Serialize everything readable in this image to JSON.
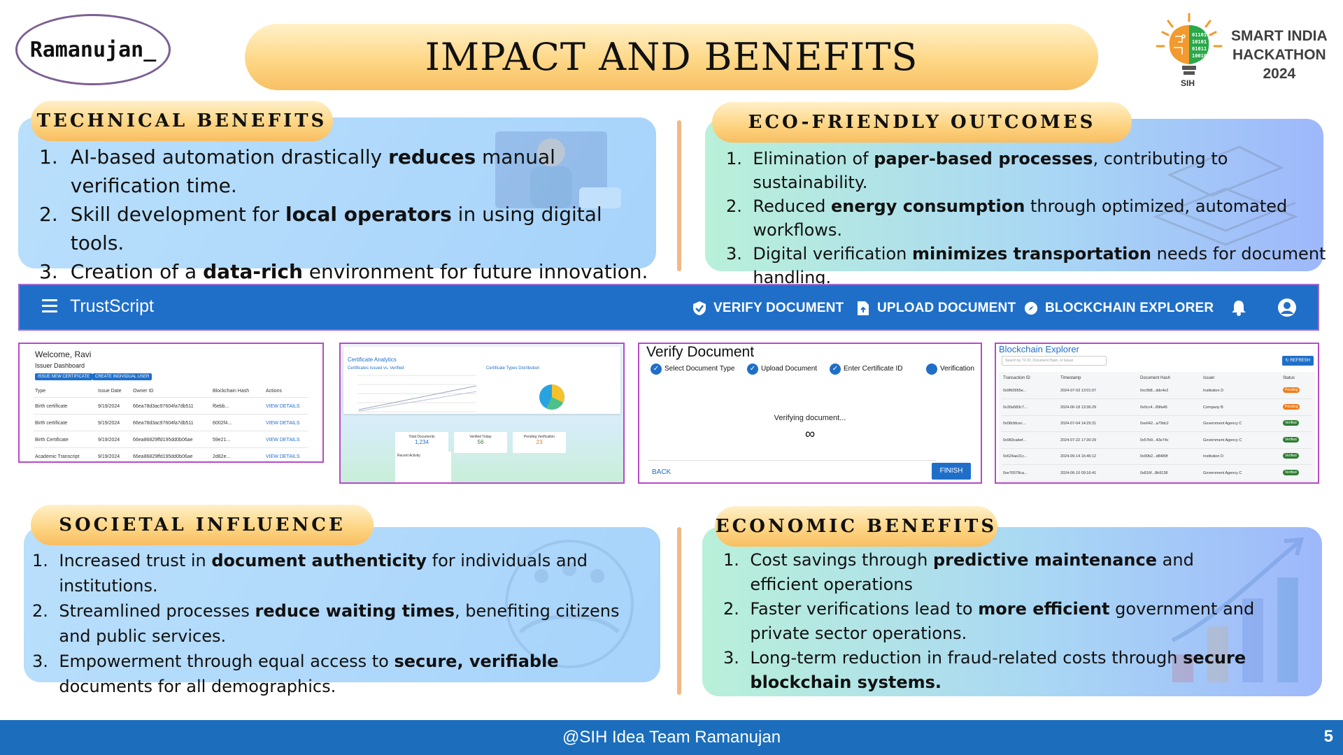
{
  "team_name": "Ramanujan_",
  "slide_title": "IMPACT AND BENEFITS",
  "logo": {
    "line1": "SMART INDIA",
    "line2": "HACKATHON",
    "line3": "2024",
    "badge": "SIH"
  },
  "technical": {
    "heading": "TECHNICAL BENEFITS",
    "items": [
      {
        "pre": "AI-based automation drastically ",
        "bold": "reduces",
        "post": " manual verification time."
      },
      {
        "pre": "Skill development for ",
        "bold": "local operators",
        "post": " in using digital tools."
      },
      {
        "pre": "Creation of a ",
        "bold": "data-rich",
        "post": " environment for future innovation."
      }
    ]
  },
  "eco": {
    "heading": "ECO-FRIENDLY OUTCOMES",
    "items": [
      {
        "pre": "Elimination of ",
        "bold": "paper-based processes",
        "post": ", contributing to sustainability."
      },
      {
        "pre": "Reduced ",
        "bold": "energy consumption",
        "post": " through optimized, automated workflows."
      },
      {
        "pre": "Digital verification ",
        "bold": "minimizes transportation",
        "post": " needs for document handling."
      }
    ]
  },
  "societal": {
    "heading": "SOCIETAL INFLUENCE",
    "items": [
      {
        "pre": "Increased trust in ",
        "bold": "document authenticity",
        "post": " for individuals and institutions."
      },
      {
        "pre": "Streamlined processes ",
        "bold": "reduce waiting times",
        "post": ", benefiting citizens and public services."
      },
      {
        "pre": "Empowerment through equal access to ",
        "bold": "secure, verifiable",
        "post": " documents for all demographics."
      }
    ]
  },
  "economic": {
    "heading": "ECONOMIC BENEFITS",
    "items": [
      {
        "pre": "Cost savings through ",
        "bold": "predictive maintenance",
        "post": " and efficient operations"
      },
      {
        "pre": "Faster verifications lead to ",
        "bold": "more efficient",
        "post": " government and private sector operations."
      },
      {
        "pre": "Long-term reduction in fraud-related costs through ",
        "bold": "secure blockchain systems.",
        "post": ""
      }
    ]
  },
  "trustscript": {
    "brand": "TrustScript",
    "nav": [
      "VERIFY DOCUMENT",
      "UPLOAD DOCUMENT",
      "BLOCKCHAIN EXPLORER"
    ],
    "icons": [
      "menu-icon",
      "shield-check-icon",
      "file-upload-icon",
      "compass-icon",
      "bell-icon",
      "account-icon"
    ],
    "primary_color": "#1f6fc9"
  },
  "shot_issuer": {
    "welcome": "Welcome, Ravi",
    "subtitle": "Issuer Dashboard",
    "btn1": "ISSUE NEW CERTIFICATE",
    "btn2": "CREATE INDIVIDUAL USER",
    "cols": [
      "Type",
      "Issue Date",
      "Owner ID",
      "Blockchain Hash",
      "Actions"
    ],
    "rows": [
      [
        "Birth certificate",
        "9/19/2024",
        "66ea78d3ac97604fa7db511",
        "f6ebb..."
      ],
      [
        "Birth certificate",
        "9/19/2024",
        "66ea78d3ac97604fa7db511",
        "6002f4..."
      ],
      [
        "Birth Certificate",
        "9/19/2024",
        "66ea86829ffd195dd0b06ae",
        "59e21..."
      ],
      [
        "Academic Transcript",
        "9/19/2024",
        "66ea86829ffd195dd0b06ae",
        "2d82e..."
      ]
    ],
    "action": "VIEW DETAILS"
  },
  "shot_analytics": {
    "title": "Certificate Analytics",
    "chart1": "Certificates Issued vs. Verified",
    "chart2": "Certificate Types Distribution",
    "stats": [
      {
        "label": "Total Documents",
        "value": "1,234"
      },
      {
        "label": "Verified Today",
        "value": "56"
      },
      {
        "label": "Pending Verification",
        "value": "23"
      }
    ],
    "recent": "Recent Activity"
  },
  "shot_verify": {
    "title": "Verify Document",
    "steps": [
      "Select Document Type",
      "Upload Document",
      "Enter Certificate ID",
      "Verification"
    ],
    "status": "Verifying document...",
    "back": "BACK",
    "finish": "FINISH"
  },
  "shot_explorer": {
    "title": "Blockchain Explorer",
    "search_placeholder": "Search by TX ID, Document Hash, or Issuer",
    "refresh": "REFRESH",
    "cols": [
      "Transaction ID",
      "Timestamp",
      "Document Hash",
      "Issuer",
      "Status"
    ],
    "rows": [
      [
        "0x9f60955e...",
        "2024-07-03 13:01:07",
        "0xc9b8...ddc4e2",
        "Institution D",
        "Pending"
      ],
      [
        "0x30a583c7...",
        "2024-06-18 13:36:29",
        "0x0cc4...89fa45",
        "Company B",
        "Pending"
      ],
      [
        "0x08cfdcec...",
        "2024-07-04 14:29:31",
        "0xe642...a79dc2",
        "Government Agency C",
        "Verified"
      ],
      [
        "0x983cabef...",
        "2024-07-22 17:30:29",
        "0x57b9...43e74c",
        "Government Agency C",
        "Verified"
      ],
      [
        "0x624ae21c...",
        "2024-09-14 16:46:12",
        "0x90b2...d8489f",
        "Institution D",
        "Verified"
      ],
      [
        "0xe76578ca...",
        "2024-06-10 09:16:41",
        "0x816f...8b9138",
        "Government Agency C",
        "Verified"
      ]
    ],
    "pending_color": "#f07b18",
    "verified_color": "#2e7d32"
  },
  "footer": {
    "text": "@SIH Idea Team Ramanujan",
    "page": "5"
  }
}
